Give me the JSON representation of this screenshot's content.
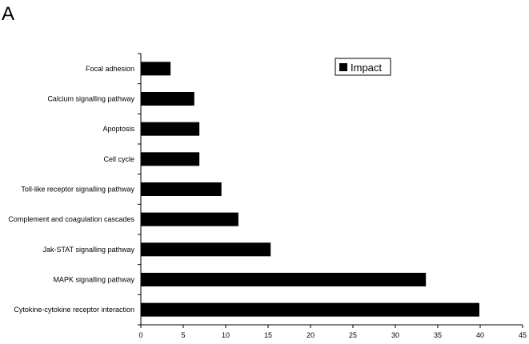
{
  "panel_label": "A",
  "chart_data": {
    "type": "bar",
    "orientation": "horizontal",
    "categories": [
      "Focal adhesion",
      "Calcium signalling pathway",
      "Apoptosis",
      "Cell cycle",
      "Toll-like receptor signalling pathway",
      "Complement and coagulation cascades",
      "Jak-STAT signalling pathway",
      "MAPK signalling pathway",
      "Cytokine-cytokine receptor interaction"
    ],
    "series": [
      {
        "name": "Impact",
        "color": "#000000",
        "values": [
          3.5,
          6.3,
          6.9,
          6.9,
          9.5,
          11.5,
          15.3,
          33.6,
          39.9
        ]
      }
    ],
    "xlim": [
      0,
      45
    ],
    "xticks": [
      "0",
      "5",
      "10",
      "15",
      "20",
      "25",
      "30",
      "35",
      "40",
      "45"
    ],
    "legend": "top-right",
    "grid": false
  }
}
